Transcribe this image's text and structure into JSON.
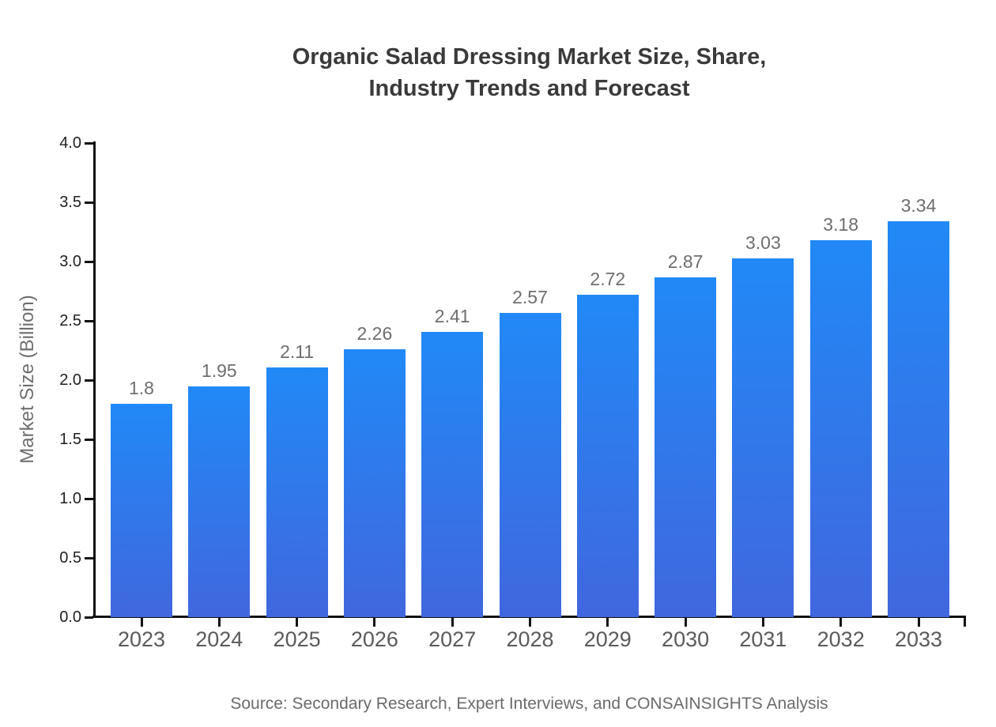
{
  "header": {
    "title_line1": "Organic Salad Dressing Market Size, Share,",
    "title_line2": "Industry Trends and Forecast"
  },
  "axes": {
    "y_label": "Market Size (Billion)",
    "ytick_labels": [
      "0.0",
      "0.5",
      "1.0",
      "1.5",
      "2.0",
      "2.5",
      "3.0",
      "3.5",
      "4.0"
    ]
  },
  "footer": {
    "source": "Source: Secondary Research, Expert Interviews, and CONSAINSIGHTS Analysis"
  },
  "colors": {
    "bar_gradient_top": "#2189F6",
    "bar_gradient_bottom": "#4167DE",
    "axis_line": "#111111",
    "title_text": "#3a3a3a",
    "ytick_text": "#1f1f1f",
    "year_text": "#5a5a5a",
    "value_label_text": "#6e6e6e",
    "muted_text": "#6b6b6b"
  },
  "chart_data": {
    "type": "bar",
    "title": "Organic Salad Dressing Market Size, Share, Industry Trends and Forecast",
    "categories": [
      "2023",
      "2024",
      "2025",
      "2026",
      "2027",
      "2028",
      "2029",
      "2030",
      "2031",
      "2032",
      "2033"
    ],
    "values": [
      1.8,
      1.95,
      2.11,
      2.26,
      2.41,
      2.57,
      2.72,
      2.87,
      3.03,
      3.18,
      3.34
    ],
    "value_labels": [
      "1.8",
      "1.95",
      "2.11",
      "2.26",
      "2.41",
      "2.57",
      "2.72",
      "2.87",
      "3.03",
      "3.18",
      "3.34"
    ],
    "xlabel": "",
    "ylabel": "Market Size (Billion)",
    "ylim": [
      0.0,
      4.0
    ],
    "ytick_step": 0.5,
    "grid": false,
    "legend": false,
    "source": "Source: Secondary Research, Expert Interviews, and CONSAINSIGHTS Analysis"
  }
}
